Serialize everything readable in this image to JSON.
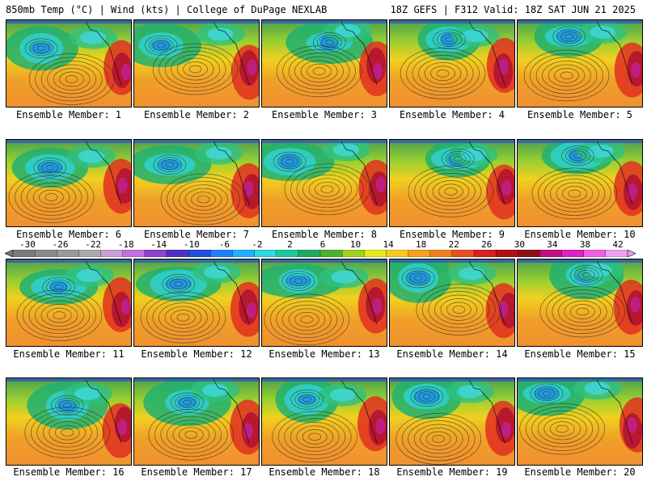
{
  "header": {
    "left": "850mb Temp (°C) | Wind (kts) | College of DuPage NEXLAB",
    "right": "18Z GEFS | F312 Valid: 18Z SAT JUN 21 2025"
  },
  "colorbar": {
    "labels": [
      "-30",
      "-26",
      "-22",
      "-18",
      "-14",
      "-10",
      "-6",
      "-2",
      "2",
      "6",
      "10",
      "14",
      "18",
      "22",
      "26",
      "30",
      "34",
      "38",
      "42"
    ],
    "colors": [
      "#7a7a7a",
      "#8a8a8a",
      "#9a9a9a",
      "#aaaaaa",
      "#c8a0d8",
      "#c070e0",
      "#9040d0",
      "#5030c0",
      "#2050e0",
      "#2080ff",
      "#20b0ff",
      "#30d8e0",
      "#20c8a0",
      "#20a860",
      "#50b030",
      "#a0d020",
      "#e8e820",
      "#f8c820",
      "#f8a020",
      "#f08020",
      "#e85020",
      "#d82020",
      "#b01010",
      "#901018",
      "#c01080",
      "#e020c0",
      "#f060e0",
      "#f0a0f0"
    ]
  },
  "panel_caption_prefix": "Ensemble Member: ",
  "panels": [
    {
      "member": "1",
      "caption": "Ensemble Member: 1"
    },
    {
      "member": "2",
      "caption": "Ensemble Member: 2"
    },
    {
      "member": "3",
      "caption": "Ensemble Member: 3"
    },
    {
      "member": "4",
      "caption": "Ensemble Member: 4"
    },
    {
      "member": "5",
      "caption": "Ensemble Member: 5"
    },
    {
      "member": "6",
      "caption": "Ensemble Member: 6"
    },
    {
      "member": "7",
      "caption": "Ensemble Member: 7"
    },
    {
      "member": "8",
      "caption": "Ensemble Member: 8"
    },
    {
      "member": "9",
      "caption": "Ensemble Member: 9"
    },
    {
      "member": "10",
      "caption": "Ensemble Member: 10"
    },
    {
      "member": "11",
      "caption": "Ensemble Member: 11"
    },
    {
      "member": "12",
      "caption": "Ensemble Member: 12"
    },
    {
      "member": "13",
      "caption": "Ensemble Member: 13"
    },
    {
      "member": "14",
      "caption": "Ensemble Member: 14"
    },
    {
      "member": "15",
      "caption": "Ensemble Member: 15"
    },
    {
      "member": "16",
      "caption": "Ensemble Member: 16"
    },
    {
      "member": "17",
      "caption": "Ensemble Member: 17"
    },
    {
      "member": "18",
      "caption": "Ensemble Member: 18"
    },
    {
      "member": "19",
      "caption": "Ensemble Member: 19"
    },
    {
      "member": "20",
      "caption": "Ensemble Member: 20"
    }
  ]
}
